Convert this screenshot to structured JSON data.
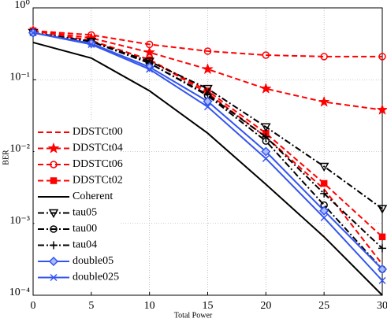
{
  "chart_data": {
    "type": "line",
    "xlabel": "Total Power",
    "ylabel": "BER",
    "xlim": [
      0,
      30
    ],
    "xticks": [
      0,
      5,
      10,
      15,
      20,
      25,
      30
    ],
    "ylim": [
      0.0001,
      1
    ],
    "yscale": "log",
    "yticks": [
      {
        "value": 0.0001,
        "label": "10⁻⁴"
      },
      {
        "value": 0.001,
        "label": "10⁻³"
      },
      {
        "value": 0.01,
        "label": "10⁻²"
      },
      {
        "value": 0.1,
        "label": "10⁻¹"
      },
      {
        "value": 1,
        "label": "10⁰"
      }
    ],
    "grid": true,
    "legend": "lower left",
    "x": [
      0,
      5,
      10,
      15,
      20,
      25,
      30
    ],
    "series": [
      {
        "name": "DDSTCt00",
        "color": "#ff0000",
        "linestyle": "dashed",
        "marker": "none",
        "values": [
          0.48,
          0.35,
          0.19,
          0.065,
          0.016,
          0.003,
          0.00027
        ]
      },
      {
        "name": "DDSTCt04",
        "color": "#ff0000",
        "linestyle": "dashed",
        "marker": "star",
        "values": [
          0.48,
          0.38,
          0.24,
          0.14,
          0.075,
          0.049,
          0.038
        ]
      },
      {
        "name": "DDSTCt06",
        "color": "#ff0000",
        "linestyle": "dashed",
        "marker": "circle",
        "values": [
          0.48,
          0.42,
          0.31,
          0.25,
          0.22,
          0.21,
          0.21
        ]
      },
      {
        "name": "DDSTCt02",
        "color": "#ff0000",
        "linestyle": "dashed",
        "marker": "square",
        "values": [
          0.48,
          0.35,
          0.19,
          0.07,
          0.018,
          0.0036,
          0.00065
        ]
      },
      {
        "name": "Coherent",
        "color": "#000000",
        "linestyle": "solid",
        "marker": "none",
        "values": [
          0.33,
          0.2,
          0.07,
          0.018,
          0.0035,
          0.00065,
          0.0001
        ]
      },
      {
        "name": "tau05",
        "color": "#000000",
        "linestyle": "dashdot",
        "marker": "triangle-down",
        "values": [
          0.45,
          0.34,
          0.18,
          0.075,
          0.022,
          0.0062,
          0.0016
        ]
      },
      {
        "name": "tau00",
        "color": "#000000",
        "linestyle": "dashdot",
        "marker": "circle",
        "values": [
          0.45,
          0.34,
          0.17,
          0.06,
          0.014,
          0.0018,
          0.00023
        ]
      },
      {
        "name": "tau04",
        "color": "#000000",
        "linestyle": "dashdot",
        "marker": "plus",
        "values": [
          0.45,
          0.34,
          0.17,
          0.062,
          0.016,
          0.0026,
          0.00045
        ]
      },
      {
        "name": "double05",
        "color": "#3355ee",
        "linestyle": "solid",
        "marker": "diamond",
        "values": [
          0.45,
          0.32,
          0.15,
          0.05,
          0.01,
          0.0015,
          0.00023
        ]
      },
      {
        "name": "double025",
        "color": "#3355ee",
        "linestyle": "solid",
        "marker": "x",
        "values": [
          0.45,
          0.31,
          0.14,
          0.042,
          0.008,
          0.0012,
          0.00016
        ]
      }
    ]
  }
}
